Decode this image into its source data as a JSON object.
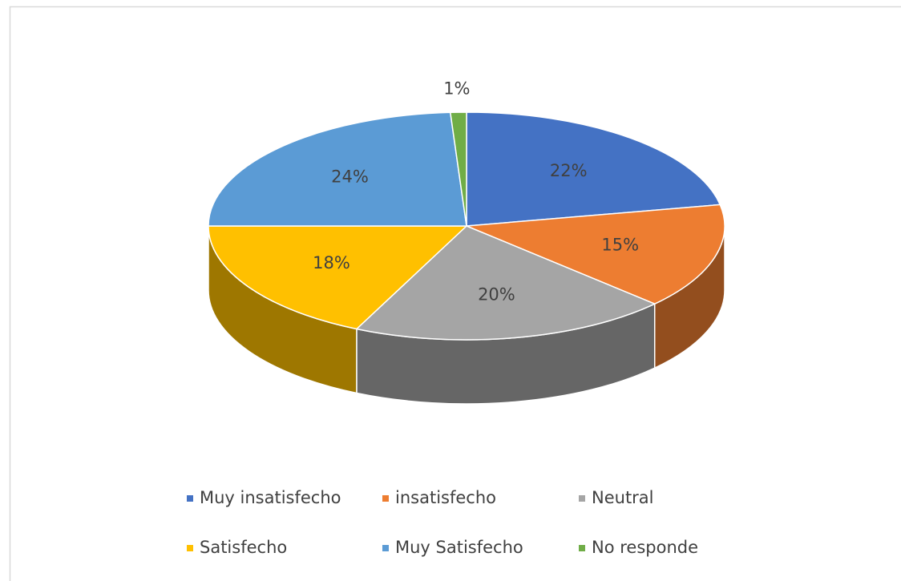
{
  "chart_data": {
    "type": "pie",
    "categories": [
      "Muy insatisfecho",
      "insatisfecho",
      "Neutral",
      "Satisfecho",
      "Muy Satisfecho",
      "No responde"
    ],
    "values": [
      22,
      15,
      20,
      18,
      24,
      1
    ],
    "value_labels": [
      "22%",
      "15%",
      "20%",
      "18%",
      "24%",
      "1%"
    ],
    "colors": [
      "#4472c4",
      "#ed7d31",
      "#a5a5a5",
      "#ffc000",
      "#5b9bd5",
      "#70ad47"
    ],
    "legend": "bottom"
  }
}
